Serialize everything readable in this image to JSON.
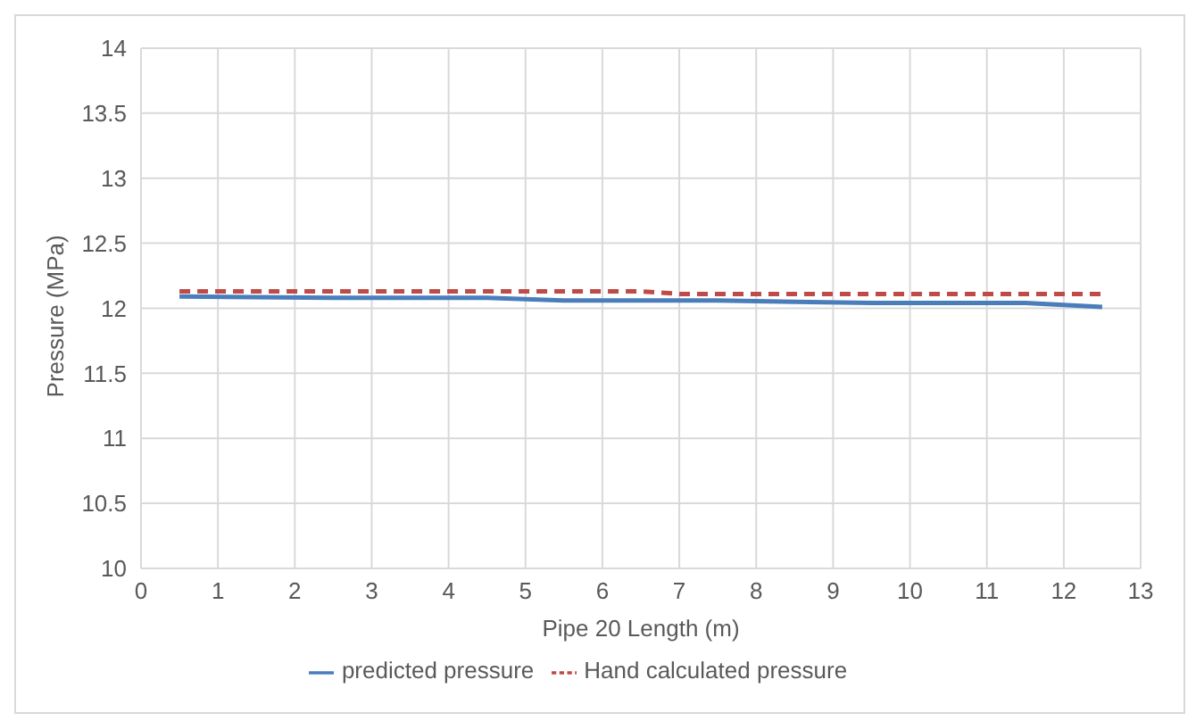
{
  "chart_data": {
    "type": "line",
    "xlabel": "Pipe 20 Length  (m)",
    "ylabel": "Pressure (MPa)",
    "xlim": [
      0,
      13
    ],
    "xticks": [
      0,
      1,
      2,
      3,
      4,
      5,
      6,
      7,
      8,
      9,
      10,
      11,
      12,
      13
    ],
    "ylim": [
      10,
      14
    ],
    "yticks": [
      10,
      10.5,
      11,
      11.5,
      12,
      12.5,
      13,
      13.5,
      14
    ],
    "grid": true,
    "legend": "bottom",
    "marker": "none",
    "series": [
      {
        "name": "predicted pressure",
        "color": "#4a7ebb",
        "line_style": "solid",
        "x": [
          0.5,
          2.5,
          4.5,
          5.5,
          7.5,
          8.5,
          9.5,
          11.5,
          12.5
        ],
        "values": [
          12.09,
          12.08,
          12.08,
          12.06,
          12.06,
          12.05,
          12.04,
          12.04,
          12.01
        ]
      },
      {
        "name": "Hand calculated pressure",
        "color": "#be4b48",
        "line_style": "dashed",
        "x": [
          0.5,
          3.5,
          6.5,
          7,
          9.5,
          12.5
        ],
        "values": [
          12.13,
          12.13,
          12.13,
          12.11,
          12.11,
          12.11
        ]
      }
    ]
  }
}
